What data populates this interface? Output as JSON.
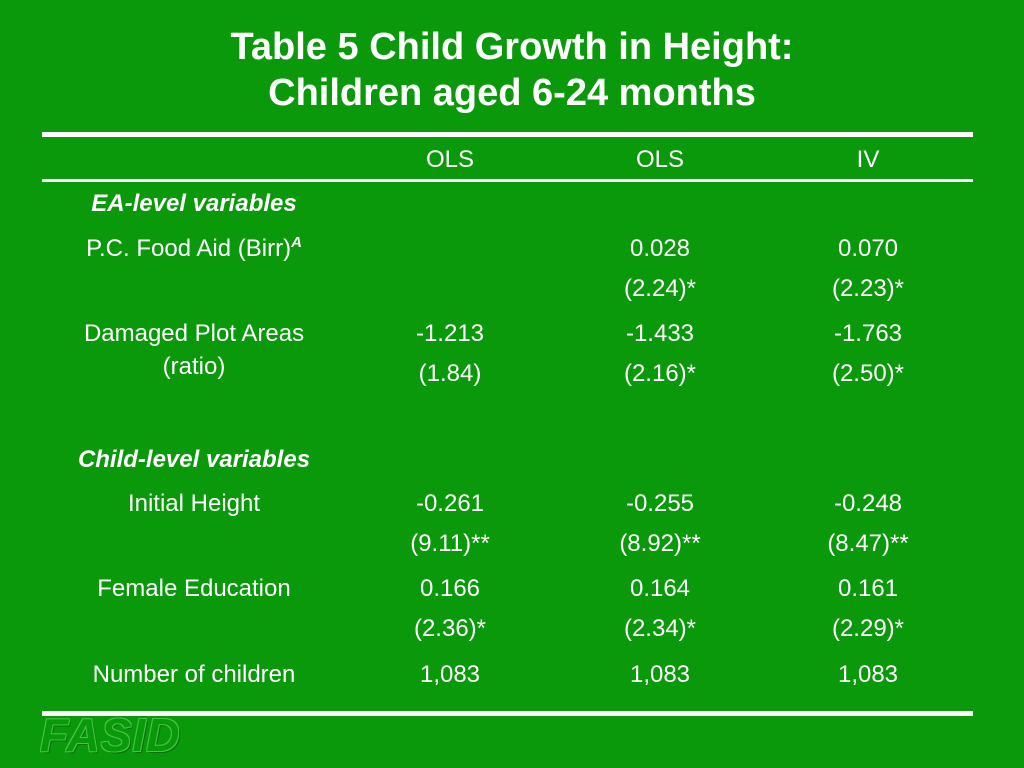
{
  "slide": {
    "title_line1": "Table 5  Child Growth in Height:",
    "title_line2": "Children aged 6-24 months",
    "background_color": "#0a990a",
    "logo_text": "FASID"
  },
  "table": {
    "columns": [
      "OLS",
      "OLS",
      "IV"
    ],
    "sections": [
      {
        "title": "EA-level variables",
        "rows": [
          {
            "label": "P.C. Food Aid (Birr)",
            "label_footnote": "A",
            "values": [
              "",
              "0.028",
              "0.070"
            ],
            "stats": [
              "",
              "(2.24)*",
              "(2.23)*"
            ]
          },
          {
            "label_line1": "Damaged Plot Areas",
            "label_line2": "(ratio)",
            "values": [
              "-1.213",
              "-1.433",
              "-1.763"
            ],
            "stats": [
              "(1.84)",
              "(2.16)*",
              "(2.50)*"
            ]
          }
        ]
      },
      {
        "title": "Child-level variables",
        "rows": [
          {
            "label": "Initial Height",
            "values": [
              "-0.261",
              "-0.255",
              "-0.248"
            ],
            "stats": [
              "(9.11)**",
              "(8.92)**",
              "(8.47)**"
            ]
          },
          {
            "label": "Female Education",
            "values": [
              "0.166",
              "0.164",
              "0.161"
            ],
            "stats": [
              "(2.36)*",
              "(2.34)*",
              "(2.29)*"
            ]
          }
        ]
      }
    ],
    "n_row": {
      "label": "Number of children",
      "values": [
        "1,083",
        "1,083",
        "1,083"
      ]
    }
  }
}
